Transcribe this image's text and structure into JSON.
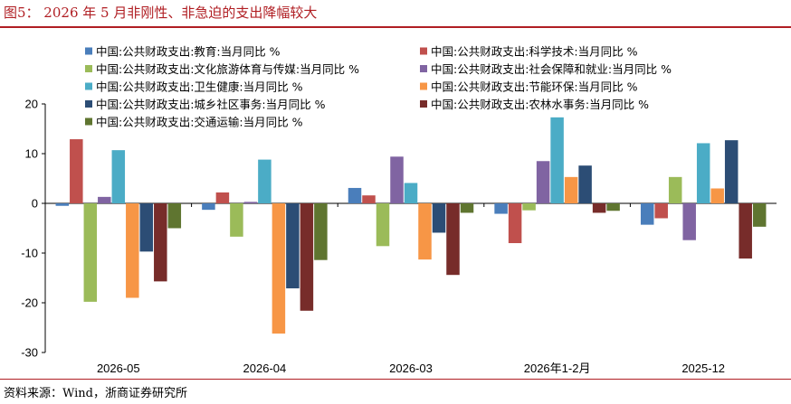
{
  "figure": {
    "title": "图5：  2026 年 5 月非刚性、非急迫的支出降幅较大",
    "source": "资料来源：Wind，浙商证券研究所"
  },
  "chart_data": {
    "type": "bar",
    "categories": [
      "2026-05",
      "2026-04",
      "2026-03",
      "2026年1-2月",
      "2025-12"
    ],
    "ylim": [
      -30,
      20
    ],
    "yticks": [
      20,
      10,
      0,
      -10,
      -20,
      -30
    ],
    "grid": false,
    "legend_position": "top",
    "series": [
      {
        "name": "中国:公共财政支出:教育:当月同比 %",
        "color": "#4a7ebb",
        "values": [
          -0.5,
          -1.3,
          3.1,
          -2.1,
          -4.3
        ]
      },
      {
        "name": "中国:公共财政支出:科学技术:当月同比 %",
        "color": "#c0504d",
        "values": [
          12.9,
          2.2,
          1.6,
          -8.0,
          -3.0
        ]
      },
      {
        "name": "中国:公共财政支出:文化旅游体育与传媒:当月同比 %",
        "color": "#9bbb59",
        "values": [
          -19.8,
          -6.7,
          -8.6,
          -1.4,
          5.3
        ]
      },
      {
        "name": "中国:公共财政支出:社会保障和就业:当月同比 %",
        "color": "#8064a2",
        "values": [
          1.3,
          0.3,
          9.4,
          8.5,
          -7.4
        ]
      },
      {
        "name": "中国:公共财政支出:卫生健康:当月同比 %",
        "color": "#4bacc6",
        "values": [
          10.7,
          8.8,
          4.1,
          17.3,
          12.1
        ]
      },
      {
        "name": "中国:公共财政支出:节能环保:当月同比 %",
        "color": "#f79646",
        "values": [
          -19.0,
          -26.2,
          -11.3,
          5.3,
          3.0
        ]
      },
      {
        "name": "中国:公共财政支出:城乡社区事务:当月同比 %",
        "color": "#2c4d75",
        "values": [
          -9.7,
          -17.1,
          -5.9,
          7.6,
          12.7
        ]
      },
      {
        "name": "中国:公共财政支出:农林水事务:当月同比 %",
        "color": "#772c2a",
        "values": [
          -15.7,
          -21.6,
          -14.4,
          -1.9,
          -11.1
        ]
      },
      {
        "name": "中国:公共财政支出:交通运输:当月同比 %",
        "color": "#5f7530",
        "values": [
          -5.0,
          -11.4,
          -1.9,
          -1.5,
          -4.7
        ]
      }
    ]
  }
}
